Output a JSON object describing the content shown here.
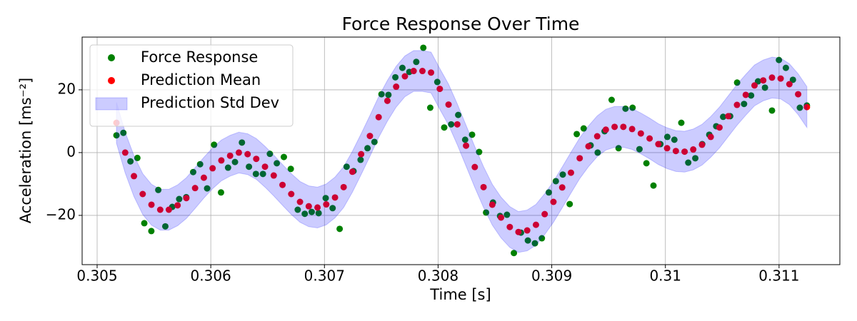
{
  "chart_data": {
    "type": "scatter",
    "title": "Force Response Over Time",
    "x_label": "Time [s]",
    "y_label": "Acceleration [ms⁻²]",
    "xlim": [
      0.304868,
      0.311535
    ],
    "ylim": [
      -35.7,
      36.8
    ],
    "xticks": [
      0.305,
      0.306,
      0.307,
      0.308,
      0.309,
      0.31,
      0.311
    ],
    "yticks": [
      {
        "value": -20,
        "label": "−20"
      },
      0,
      20
    ],
    "grid": true,
    "legend": "upper left",
    "series": [
      {
        "name": "Force Response",
        "type": "scatter",
        "color": "#008000",
        "x": [
          0.30517,
          0.305231,
          0.305293,
          0.305354,
          0.305415,
          0.305477,
          0.305538,
          0.3056,
          0.305661,
          0.305722,
          0.305784,
          0.305845,
          0.305906,
          0.305968,
          0.306029,
          0.30609,
          0.306152,
          0.306213,
          0.306274,
          0.306336,
          0.306397,
          0.306459,
          0.30652,
          0.306581,
          0.306643,
          0.306704,
          0.306765,
          0.306827,
          0.306888,
          0.306949,
          0.307011,
          0.307072,
          0.307134,
          0.307195,
          0.307256,
          0.307318,
          0.307379,
          0.30744,
          0.307502,
          0.307563,
          0.307624,
          0.307686,
          0.307747,
          0.307808,
          0.30787,
          0.307931,
          0.307993,
          0.308054,
          0.308115,
          0.308177,
          0.308238,
          0.308299,
          0.308361,
          0.308422,
          0.308483,
          0.308545,
          0.308606,
          0.308667,
          0.308729,
          0.30879,
          0.308852,
          0.308913,
          0.308974,
          0.309036,
          0.309097,
          0.309158,
          0.30922,
          0.309281,
          0.309342,
          0.309404,
          0.309465,
          0.309527,
          0.309588,
          0.309649,
          0.309711,
          0.309772,
          0.309833,
          0.309895,
          0.309956,
          0.310017,
          0.310079,
          0.31014,
          0.310201,
          0.310263,
          0.310324,
          0.310386,
          0.310447,
          0.310508,
          0.31057,
          0.310631,
          0.310692,
          0.310754,
          0.310815,
          0.310876,
          0.310938,
          0.310999,
          0.31106,
          0.311122,
          0.311183,
          0.311245
        ],
        "values": [
          5.5,
          6.3,
          -2.8,
          -1.7,
          -22.5,
          -25,
          -11.9,
          -23.5,
          -17.3,
          -14.8,
          -14.2,
          -6.2,
          -3.7,
          -11.4,
          2.5,
          -12.7,
          -4.8,
          -3,
          3.2,
          -4.5,
          -6.8,
          -6.8,
          -0.4,
          -3.4,
          -1.4,
          -5.2,
          -18.2,
          -19.5,
          -18.9,
          -19.3,
          -14.5,
          -17.7,
          -24.3,
          -4.5,
          -5.9,
          -2.3,
          1.4,
          3.4,
          18.6,
          18.4,
          24,
          27,
          25.7,
          28.9,
          33.4,
          14.3,
          22.5,
          8,
          9,
          12,
          4.1,
          5.7,
          0.2,
          -19.1,
          -15.9,
          -20.2,
          -19.8,
          -32,
          -25.5,
          -28,
          -28.9,
          -27.3,
          -12.7,
          -9.1,
          -7,
          -16.4,
          5.9,
          7.7,
          2.3,
          0,
          6.8,
          16.8,
          1.4,
          14,
          14.3,
          1.1,
          -3.4,
          -10.5,
          2.7,
          5,
          4.1,
          9.5,
          -3.2,
          -1.8,
          2.7,
          5.7,
          8.4,
          11.4,
          11.6,
          22.3,
          15.5,
          18.2,
          22.7,
          20.7,
          13.4,
          29.5,
          27,
          23.2,
          14.3,
          15
        ]
      },
      {
        "name": "Prediction Mean",
        "type": "scatter",
        "color": "#ff0000",
        "x": [
          0.30517,
          0.305247,
          0.305324,
          0.305401,
          0.305478,
          0.305555,
          0.305631,
          0.305708,
          0.305785,
          0.305862,
          0.305939,
          0.306016,
          0.306093,
          0.30617,
          0.306247,
          0.306324,
          0.3064,
          0.306477,
          0.306554,
          0.306631,
          0.306708,
          0.306785,
          0.306862,
          0.306939,
          0.307016,
          0.307093,
          0.307169,
          0.307246,
          0.307323,
          0.3074,
          0.307477,
          0.307554,
          0.307631,
          0.307708,
          0.307785,
          0.307862,
          0.307938,
          0.308015,
          0.308092,
          0.308169,
          0.308246,
          0.308323,
          0.3084,
          0.308477,
          0.308554,
          0.308631,
          0.308707,
          0.308784,
          0.308861,
          0.308938,
          0.309015,
          0.309092,
          0.309169,
          0.309246,
          0.309323,
          0.3094,
          0.309476,
          0.309553,
          0.30963,
          0.309707,
          0.309784,
          0.309861,
          0.309938,
          0.310015,
          0.310092,
          0.310169,
          0.310245,
          0.310322,
          0.310399,
          0.310476,
          0.310553,
          0.31063,
          0.310707,
          0.310784,
          0.310861,
          0.310938,
          0.311014,
          0.311091,
          0.311168,
          0.311245
        ],
        "values": [
          9.5,
          0,
          -7.5,
          -13.2,
          -16.6,
          -18.2,
          -18.2,
          -16.8,
          -14.5,
          -11.3,
          -8,
          -5,
          -2.5,
          -1,
          0,
          -0.5,
          -2,
          -4.5,
          -7.3,
          -10.3,
          -13.2,
          -15.7,
          -17.1,
          -17.5,
          -16.5,
          -14.3,
          -11,
          -6.1,
          -0.5,
          5.3,
          11.3,
          16.5,
          21,
          24.3,
          26,
          26,
          25.5,
          20.3,
          15.3,
          9,
          2.2,
          -4.6,
          -11,
          -16.6,
          -20.7,
          -23.7,
          -25.3,
          -24.8,
          -23,
          -19.6,
          -15.7,
          -11.1,
          -6.4,
          -1.8,
          2,
          5.2,
          7.3,
          8.2,
          8.2,
          7.5,
          6.1,
          4.5,
          2.7,
          1.4,
          0.5,
          0.3,
          1,
          2.5,
          5,
          8,
          11.6,
          15.2,
          18.4,
          21.4,
          23,
          23.9,
          23.6,
          21.8,
          18.6,
          14.5
        ]
      },
      {
        "name": "Prediction Std Dev",
        "type": "band",
        "color": "#0000ff",
        "x": [
          0.30517,
          0.305247,
          0.305324,
          0.305401,
          0.305478,
          0.305555,
          0.305631,
          0.305708,
          0.305785,
          0.305862,
          0.305939,
          0.306016,
          0.306093,
          0.30617,
          0.306247,
          0.306324,
          0.3064,
          0.306477,
          0.306554,
          0.306631,
          0.306708,
          0.306785,
          0.306862,
          0.306939,
          0.307016,
          0.307093,
          0.307169,
          0.307246,
          0.307323,
          0.3074,
          0.307477,
          0.307554,
          0.307631,
          0.307708,
          0.307785,
          0.307862,
          0.307938,
          0.308015,
          0.308092,
          0.308169,
          0.308246,
          0.308323,
          0.3084,
          0.308477,
          0.308554,
          0.308631,
          0.308707,
          0.308784,
          0.308861,
          0.308938,
          0.309015,
          0.309092,
          0.309169,
          0.309246,
          0.309323,
          0.3094,
          0.309476,
          0.309553,
          0.30963,
          0.309707,
          0.309784,
          0.309861,
          0.309938,
          0.310015,
          0.310092,
          0.310169,
          0.310245,
          0.310322,
          0.310399,
          0.310476,
          0.310553,
          0.31063,
          0.310707,
          0.310784,
          0.310861,
          0.310938,
          0.311014,
          0.311091,
          0.311168,
          0.311245
        ],
        "upper": [
          16,
          6.5,
          -1,
          -6.7,
          -10.1,
          -11.7,
          -11.7,
          -10.3,
          -8,
          -4.8,
          -1.5,
          1.5,
          4,
          5.5,
          6.5,
          6,
          4.5,
          2,
          -0.8,
          -3.8,
          -6.7,
          -9.2,
          -10.6,
          -11,
          -10,
          -7.8,
          -4.5,
          0.4,
          6,
          11.8,
          17.8,
          23,
          27.5,
          30.8,
          32.5,
          32.5,
          32,
          26.8,
          21.8,
          15.5,
          8.7,
          1.9,
          -4.5,
          -10.1,
          -14.2,
          -17.2,
          -18.8,
          -18.3,
          -16.5,
          -13.1,
          -9.2,
          -4.6,
          0.1,
          4.7,
          8.5,
          11.7,
          13.8,
          14.7,
          14.7,
          14,
          12.6,
          11,
          9.2,
          7.9,
          7,
          6.8,
          7.5,
          9,
          11.5,
          14.5,
          18.1,
          21.7,
          24.9,
          27.9,
          29.5,
          30.4,
          30.1,
          28.3,
          25.1,
          21
        ],
        "lower": [
          3,
          -6.5,
          -14,
          -19.7,
          -23.1,
          -24.7,
          -24.7,
          -23.3,
          -21,
          -17.8,
          -14.5,
          -11.5,
          -9,
          -7.5,
          -6.5,
          -7,
          -8.5,
          -11,
          -13.8,
          -16.8,
          -19.7,
          -22.2,
          -23.6,
          -24,
          -23,
          -20.8,
          -17.5,
          -12.6,
          -7,
          -1.2,
          4.8,
          10,
          14.5,
          17.8,
          19.5,
          19.5,
          19,
          13.8,
          8.8,
          2.5,
          -4.3,
          -11.1,
          -17.5,
          -23.1,
          -27.2,
          -30.2,
          -31.8,
          -31.3,
          -29.5,
          -26.1,
          -22.2,
          -17.6,
          -12.9,
          -8.3,
          -4.5,
          -1.3,
          0.8,
          1.7,
          1.7,
          1,
          -0.4,
          -2,
          -3.8,
          -5.1,
          -6,
          -6.2,
          -5.5,
          -4,
          -1.5,
          1.5,
          5.1,
          8.7,
          11.9,
          14.9,
          16.5,
          17.4,
          17.1,
          15.3,
          12.1,
          8
        ]
      }
    ]
  }
}
